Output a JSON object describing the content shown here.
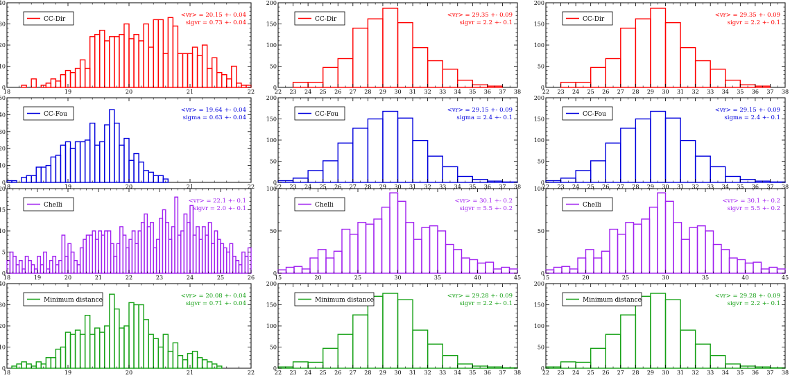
{
  "colors": {
    "red": "#ff0000",
    "blue": "#0000dd",
    "purple": "#a020f0",
    "green": "#14a014",
    "axis": "#000000"
  },
  "chart_data": [
    {
      "type": "bar",
      "row": 0,
      "col": 0,
      "legend": "CC-Dir",
      "color": "red",
      "stats": [
        "<vr> = 20.15 +- 0.04",
        "sigvr = 0.73 +- 0.04"
      ],
      "xlim": [
        18,
        22
      ],
      "ylim": [
        0,
        40
      ],
      "xticks": [
        18,
        19,
        20,
        21,
        22
      ],
      "yticks": [
        0,
        10,
        20,
        30,
        40
      ],
      "bin_start": 18.0,
      "bin_width": 0.08,
      "values": [
        0,
        0,
        0,
        1,
        0,
        4,
        0,
        1,
        2,
        4,
        3,
        6,
        8,
        7,
        9,
        13,
        9,
        24,
        25,
        27,
        22,
        24,
        24,
        25,
        30,
        23,
        25,
        22,
        30,
        19,
        32,
        32,
        16,
        33,
        29,
        16,
        16,
        16,
        19,
        15,
        20,
        9,
        14,
        7,
        6,
        4,
        10,
        2,
        1,
        1
      ]
    },
    {
      "type": "bar",
      "row": 0,
      "col": 1,
      "legend": "CC-Dir",
      "color": "red",
      "stats": [
        "<vr> = 29.35 +- 0.09",
        "sigvr = 2.2 +- 0.1"
      ],
      "xlim": [
        22,
        38
      ],
      "ylim": [
        0,
        200
      ],
      "xticks": [
        22,
        23,
        24,
        25,
        26,
        27,
        28,
        29,
        30,
        31,
        32,
        33,
        34,
        35,
        36,
        37,
        38
      ],
      "yticks": [
        0,
        50,
        100,
        150,
        200
      ],
      "bin_start": 23.0,
      "bin_width": 1,
      "values": [
        12,
        12,
        47,
        68,
        140,
        162,
        187,
        153,
        94,
        63,
        43,
        17,
        6,
        3
      ]
    },
    {
      "type": "bar",
      "row": 0,
      "col": 2,
      "legend": "CC-Dir",
      "color": "red",
      "stats": [
        "<vr> = 29.35 +- 0.09",
        "sigvr = 2.2 +- 0.1"
      ],
      "xlim": [
        22,
        38
      ],
      "ylim": [
        0,
        200
      ],
      "xticks": [
        22,
        23,
        24,
        25,
        26,
        27,
        28,
        29,
        30,
        31,
        32,
        33,
        34,
        35,
        36,
        37,
        38
      ],
      "yticks": [
        0,
        50,
        100,
        150,
        200
      ],
      "bin_start": 23.0,
      "bin_width": 1,
      "values": [
        12,
        12,
        47,
        68,
        140,
        162,
        187,
        153,
        94,
        63,
        43,
        17,
        6,
        3
      ]
    },
    {
      "type": "bar",
      "row": 1,
      "col": 0,
      "legend": "CC-Fou",
      "color": "blue",
      "stats": [
        "<vr> = 19.64 +- 0.04",
        "sigma = 0.63 +- 0.04"
      ],
      "xlim": [
        18,
        22
      ],
      "ylim": [
        0,
        50
      ],
      "xticks": [
        18,
        19,
        20,
        21,
        22
      ],
      "yticks": [
        0,
        10,
        20,
        30,
        40,
        50
      ],
      "bin_start": 18.0,
      "bin_width": 0.08,
      "values": [
        1,
        1,
        0,
        3,
        4,
        4,
        9,
        9,
        10,
        15,
        16,
        22,
        24,
        20,
        24,
        24,
        25,
        35,
        22,
        24,
        34,
        43,
        35,
        22,
        26,
        13,
        17,
        12,
        7,
        6,
        4,
        4,
        2,
        0,
        0,
        0,
        0,
        0,
        0,
        0,
        0,
        0,
        0,
        0,
        0,
        0,
        0,
        0,
        0,
        0
      ]
    },
    {
      "type": "bar",
      "row": 1,
      "col": 1,
      "legend": "CC-Fou",
      "color": "blue",
      "stats": [
        "<vr> = 29.15 +- 0.09",
        "sigma = 2.4 +- 0.1"
      ],
      "xlim": [
        22,
        38
      ],
      "ylim": [
        0,
        200
      ],
      "xticks": [
        22,
        23,
        24,
        25,
        26,
        27,
        28,
        29,
        30,
        31,
        32,
        33,
        34,
        35,
        36,
        37,
        38
      ],
      "yticks": [
        0,
        50,
        100,
        150,
        200
      ],
      "bin_start": 22.0,
      "bin_width": 1,
      "values": [
        4,
        10,
        28,
        51,
        93,
        128,
        150,
        168,
        152,
        99,
        62,
        37,
        14,
        7,
        3,
        1
      ]
    },
    {
      "type": "bar",
      "row": 1,
      "col": 2,
      "legend": "CC-Fou",
      "color": "blue",
      "stats": [
        "<vr> = 29.15 +- 0.09",
        "sigma = 2.4 +- 0.1"
      ],
      "xlim": [
        22,
        38
      ],
      "ylim": [
        0,
        200
      ],
      "xticks": [
        22,
        23,
        24,
        25,
        26,
        27,
        28,
        29,
        30,
        31,
        32,
        33,
        34,
        35,
        36,
        37,
        38
      ],
      "yticks": [
        0,
        50,
        100,
        150,
        200
      ],
      "bin_start": 22.0,
      "bin_width": 1,
      "values": [
        4,
        10,
        28,
        51,
        93,
        128,
        150,
        168,
        152,
        99,
        62,
        37,
        14,
        7,
        3,
        1
      ]
    },
    {
      "type": "bar",
      "row": 2,
      "col": 0,
      "legend": "Chelli",
      "color": "purple",
      "stats": [
        "<vr> = 22.1 +- 0.1",
        "sigvr = 2.0 +- 0.1"
      ],
      "xlim": [
        18,
        26
      ],
      "ylim": [
        0,
        20
      ],
      "xticks": [
        18,
        19,
        20,
        21,
        22,
        23,
        24,
        25,
        26
      ],
      "yticks": [
        0,
        5,
        10,
        15,
        20
      ],
      "bin_start": 18.0,
      "bin_width": 0.1,
      "values": [
        3,
        5,
        4,
        2,
        3,
        1,
        4,
        3,
        2,
        1,
        4,
        2,
        5,
        1,
        3,
        4,
        2,
        3,
        9,
        4,
        7,
        5,
        3,
        2,
        6,
        8,
        9,
        9,
        10,
        8,
        10,
        9,
        10,
        10,
        7,
        4,
        7,
        11,
        9,
        6,
        8,
        10,
        7,
        10,
        12,
        14,
        11,
        12,
        6,
        8,
        13,
        15,
        12,
        8,
        11,
        18,
        9,
        10,
        14,
        12,
        16,
        9,
        11,
        8,
        11,
        9,
        12,
        7,
        10,
        8,
        7,
        6,
        5,
        7,
        4,
        3,
        2,
        5,
        4,
        6,
        5,
        2,
        5,
        3,
        4,
        2,
        5,
        1,
        2,
        6,
        4,
        3,
        2,
        5,
        4,
        2,
        1,
        2,
        1,
        2
      ]
    },
    {
      "type": "bar",
      "row": 2,
      "col": 1,
      "legend": "Chelli",
      "color": "purple",
      "stats": [
        "<vr> = 30.1 +- 0.2",
        "sigvr = 5.5 +- 0.2"
      ],
      "xlim": [
        15,
        45
      ],
      "ylim": [
        0,
        100
      ],
      "xticks": [
        15,
        20,
        25,
        30,
        35,
        40,
        45
      ],
      "yticks": [
        0,
        50,
        100
      ],
      "bin_start": 15.0,
      "bin_width": 1,
      "values": [
        4,
        7,
        8,
        5,
        18,
        28,
        18,
        26,
        52,
        46,
        60,
        58,
        64,
        78,
        95,
        85,
        60,
        40,
        54,
        56,
        50,
        34,
        28,
        18,
        16,
        12,
        13,
        5,
        7,
        5
      ]
    },
    {
      "type": "bar",
      "row": 2,
      "col": 2,
      "legend": "Chelli",
      "color": "purple",
      "stats": [
        "<vr> = 30.1 +- 0.2",
        "sigvr = 5.5 +- 0.2"
      ],
      "xlim": [
        15,
        45
      ],
      "ylim": [
        0,
        100
      ],
      "xticks": [
        15,
        20,
        25,
        30,
        35,
        40,
        45
      ],
      "yticks": [
        0,
        50,
        100
      ],
      "bin_start": 15.0,
      "bin_width": 1,
      "values": [
        4,
        7,
        8,
        5,
        18,
        28,
        18,
        26,
        52,
        46,
        60,
        58,
        64,
        78,
        95,
        85,
        60,
        40,
        54,
        56,
        50,
        34,
        28,
        18,
        16,
        12,
        13,
        5,
        7,
        5
      ]
    },
    {
      "type": "bar",
      "row": 3,
      "col": 0,
      "legend": "Minimum distance",
      "color": "green",
      "stats": [
        "<vr> = 20.08 +- 0.04",
        "sigvr = 0.71 +- 0.04"
      ],
      "xlim": [
        18,
        22
      ],
      "ylim": [
        0,
        40
      ],
      "xticks": [
        18,
        19,
        20,
        21,
        22
      ],
      "yticks": [
        0,
        10,
        20,
        30,
        40
      ],
      "bin_start": 18.0,
      "bin_width": 0.08,
      "values": [
        0,
        1,
        2,
        3,
        2,
        1,
        3,
        2,
        5,
        5,
        9,
        10,
        17,
        16,
        18,
        16,
        25,
        16,
        19,
        17,
        20,
        35,
        28,
        19,
        20,
        31,
        30,
        30,
        23,
        16,
        14,
        10,
        16,
        8,
        12,
        6,
        4,
        7,
        8,
        5,
        4,
        3,
        2,
        1,
        0,
        0,
        0,
        0,
        0,
        0
      ]
    },
    {
      "type": "bar",
      "row": 3,
      "col": 1,
      "legend": "Minimum distance",
      "color": "green",
      "stats": [
        "<vr> = 29.28 +- 0.09",
        "sigvr = 2.2 +- 0.1"
      ],
      "xlim": [
        22,
        38
      ],
      "ylim": [
        0,
        200
      ],
      "xticks": [
        22,
        23,
        24,
        25,
        26,
        27,
        28,
        29,
        30,
        31,
        32,
        33,
        34,
        35,
        36,
        37,
        38
      ],
      "yticks": [
        0,
        50,
        100,
        150,
        200
      ],
      "bin_start": 22.0,
      "bin_width": 1,
      "values": [
        3,
        15,
        14,
        47,
        80,
        126,
        170,
        177,
        162,
        90,
        57,
        30,
        10,
        5,
        3,
        1
      ]
    },
    {
      "type": "bar",
      "row": 3,
      "col": 2,
      "legend": "Minimum distance",
      "color": "green",
      "stats": [
        "<vr> = 29.28 +- 0.09",
        "sigvr = 2.2 +- 0.1"
      ],
      "xlim": [
        22,
        38
      ],
      "ylim": [
        0,
        200
      ],
      "xticks": [
        22,
        23,
        24,
        25,
        26,
        27,
        28,
        29,
        30,
        31,
        32,
        33,
        34,
        35,
        36,
        37,
        38
      ],
      "yticks": [
        0,
        50,
        100,
        150,
        200
      ],
      "bin_start": 22.0,
      "bin_width": 1,
      "values": [
        3,
        15,
        14,
        47,
        80,
        126,
        170,
        177,
        162,
        90,
        57,
        30,
        10,
        5,
        3,
        1
      ]
    }
  ]
}
